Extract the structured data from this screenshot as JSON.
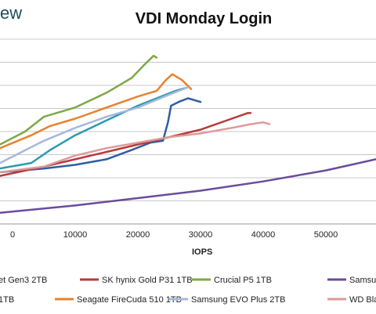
{
  "brand": {
    "text": "ew",
    "color": "#1f4e5f"
  },
  "chart_data": {
    "type": "line",
    "title": "VDI Monday Login",
    "xlabel": "IOPS",
    "ylabel": "",
    "x_ticks": [
      "0",
      "10000",
      "20000",
      "30000",
      "40000",
      "50000"
    ],
    "xlim": [
      -2000,
      58000
    ],
    "ylim": [
      0,
      1
    ],
    "grid": "horizontal",
    "legend_placement": "bottom",
    "series": [
      {
        "name": "et Gen3 2TB",
        "color": "#2e5fa3",
        "x": [
          -2000,
          5000,
          10000,
          15000,
          19000,
          22000,
          24000,
          24800,
          25300,
          26500,
          28000,
          30000
        ],
        "y": [
          0.28,
          0.3,
          0.32,
          0.35,
          0.4,
          0.44,
          0.45,
          0.55,
          0.64,
          0.66,
          0.68,
          0.66
        ]
      },
      {
        "name": "SK hynix Gold P31 1TB",
        "color": "#b83a3a",
        "x": [
          -2000,
          5000,
          10000,
          15000,
          20000,
          25000,
          30000,
          35000,
          37500,
          38000
        ],
        "y": [
          0.26,
          0.31,
          0.35,
          0.39,
          0.43,
          0.47,
          0.51,
          0.57,
          0.6,
          0.6
        ]
      },
      {
        "name": "Crucial P5 1TB",
        "color": "#7ea846",
        "x": [
          -2000,
          2000,
          5000,
          10000,
          15000,
          19000,
          21000,
          22500,
          23000
        ],
        "y": [
          0.43,
          0.5,
          0.58,
          0.63,
          0.71,
          0.79,
          0.86,
          0.91,
          0.9
        ]
      },
      {
        "name": "Samsung",
        "color": "#6a4c9c",
        "x": [
          -2000,
          10000,
          20000,
          30000,
          40000,
          50000,
          58000
        ],
        "y": [
          0.06,
          0.1,
          0.14,
          0.18,
          0.23,
          0.29,
          0.35
        ]
      },
      {
        "name": "1TB",
        "color": "#2a9bae",
        "x": [
          -2000,
          3000,
          6000,
          10000,
          15000,
          20000,
          23000,
          26000,
          28000
        ],
        "y": [
          0.3,
          0.33,
          0.4,
          0.48,
          0.56,
          0.64,
          0.68,
          0.72,
          0.74
        ]
      },
      {
        "name": "Seagate FireCuda 510 1TB",
        "color": "#e8822f",
        "x": [
          -2000,
          3000,
          6000,
          10000,
          15000,
          20000,
          23000,
          24500,
          25500,
          27000,
          28500
        ],
        "y": [
          0.41,
          0.48,
          0.53,
          0.57,
          0.63,
          0.69,
          0.72,
          0.78,
          0.81,
          0.78,
          0.73
        ]
      },
      {
        "name": "Samsung EVO Plus 2TB",
        "color": "#a6b8dd",
        "x": [
          -2000,
          5000,
          10000,
          15000,
          20000,
          25000,
          28000
        ],
        "y": [
          0.33,
          0.45,
          0.52,
          0.58,
          0.63,
          0.7,
          0.74
        ]
      },
      {
        "name": "WD Bla",
        "color": "#dd9a9a",
        "x": [
          -2000,
          5000,
          10000,
          15000,
          20000,
          25000,
          30000,
          35000,
          38000,
          40000,
          41000
        ],
        "y": [
          0.28,
          0.31,
          0.37,
          0.41,
          0.44,
          0.47,
          0.49,
          0.52,
          0.54,
          0.55,
          0.54
        ]
      }
    ]
  }
}
